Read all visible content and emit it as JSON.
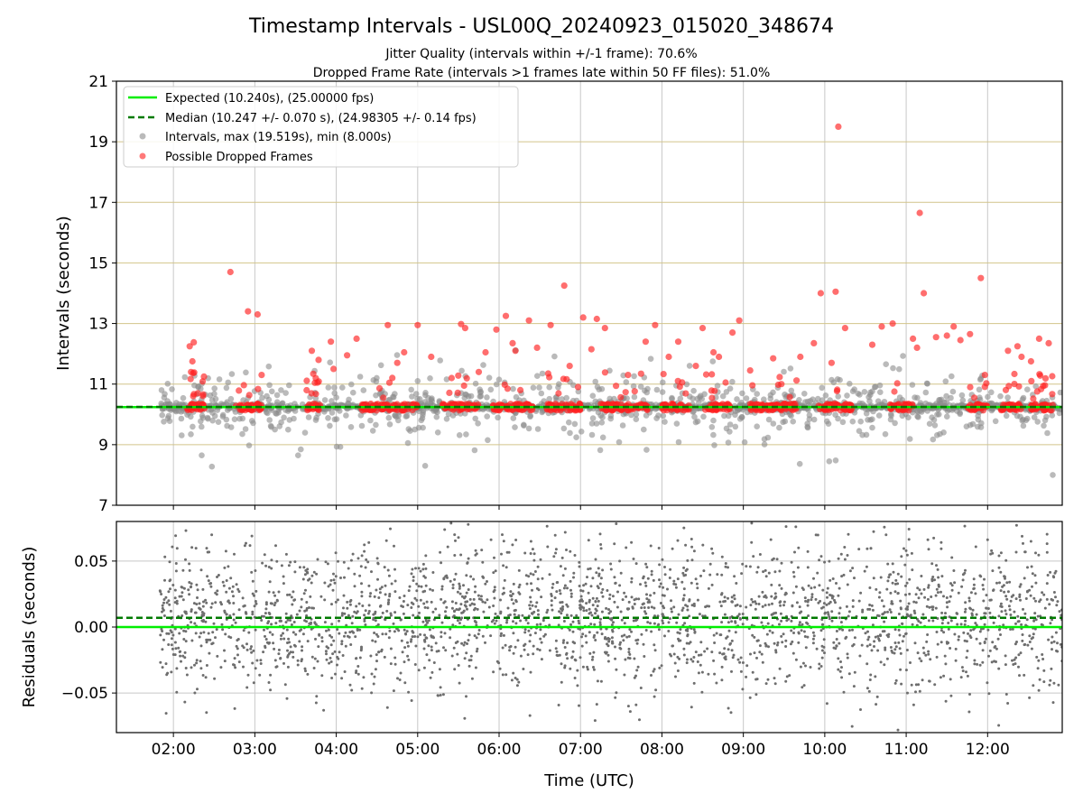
{
  "chart_data": [
    {
      "type": "scatter",
      "title": "Timestamp Intervals - USL00Q_20240923_015020_348674",
      "subtitle_lines": [
        "Jitter Quality (intervals within +/-1 frame): 70.6%",
        "Dropped Frame Rate (intervals >1 frames late within 50 FF files): 51.0%"
      ],
      "xlabel": "",
      "ylabel": "Intervals (seconds)",
      "xlim": [
        "01:18",
        "12:55"
      ],
      "ylim": [
        7,
        21
      ],
      "yticks": [
        7,
        9,
        11,
        13,
        15,
        17,
        19,
        21
      ],
      "ytick_labels": [
        "7",
        "9",
        "11",
        "13",
        "15",
        "17",
        "19",
        "21"
      ],
      "xticks": [
        "02:00",
        "03:00",
        "04:00",
        "05:00",
        "06:00",
        "07:00",
        "08:00",
        "09:00",
        "10:00",
        "11:00",
        "12:00"
      ],
      "grid": true,
      "legend_placement": "top-left",
      "legend": [
        "Expected (10.240s), (25.00000 fps)",
        "Median (10.247 +/- 0.070 s), (24.98305 +/- 0.14 fps)",
        "Intervals, max (19.519s), min (8.000s)",
        "Possible Dropped Frames"
      ],
      "expected_line": 10.24,
      "median_line": 10.247,
      "series": [
        {
          "name": "Intervals, max (19.519s), min (8.000s)",
          "color": "#8c8c8c",
          "time_range": [
            "01:50",
            "12:55"
          ],
          "baseline": 10.24,
          "max": 19.519,
          "min": 8.0
        },
        {
          "name": "Possible Dropped Frames",
          "color": "#ff2020",
          "points": [
            [
              "02:12",
              12.25
            ],
            [
              "02:15",
              12.38
            ],
            [
              "02:14",
              11.75
            ],
            [
              "02:13",
              11.4
            ],
            [
              "02:18",
              10.7
            ],
            [
              "02:42",
              14.7
            ],
            [
              "02:55",
              13.4
            ],
            [
              "03:02",
              13.3
            ],
            [
              "03:05",
              11.3
            ],
            [
              "03:42",
              12.1
            ],
            [
              "03:47",
              11.8
            ],
            [
              "03:56",
              12.4
            ],
            [
              "03:58",
              11.5
            ],
            [
              "04:08",
              11.95
            ],
            [
              "04:15",
              12.5
            ],
            [
              "04:38",
              12.95
            ],
            [
              "04:45",
              11.7
            ],
            [
              "04:50",
              12.05
            ],
            [
              "05:00",
              12.95
            ],
            [
              "05:10",
              11.9
            ],
            [
              "05:25",
              11.2
            ],
            [
              "05:32",
              12.98
            ],
            [
              "05:35",
              12.85
            ],
            [
              "05:45",
              11.4
            ],
            [
              "05:50",
              12.05
            ],
            [
              "05:58",
              12.8
            ],
            [
              "06:05",
              13.25
            ],
            [
              "06:10",
              12.35
            ],
            [
              "06:12",
              12.1
            ],
            [
              "06:22",
              13.1
            ],
            [
              "06:28",
              12.2
            ],
            [
              "06:38",
              12.95
            ],
            [
              "06:48",
              14.25
            ],
            [
              "06:52",
              11.6
            ],
            [
              "07:02",
              13.2
            ],
            [
              "07:08",
              12.15
            ],
            [
              "07:12",
              13.15
            ],
            [
              "07:18",
              12.85
            ],
            [
              "07:35",
              11.3
            ],
            [
              "07:48",
              12.4
            ],
            [
              "07:55",
              12.95
            ],
            [
              "08:05",
              11.9
            ],
            [
              "08:12",
              12.4
            ],
            [
              "08:25",
              11.6
            ],
            [
              "08:30",
              12.85
            ],
            [
              "08:38",
              12.05
            ],
            [
              "08:42",
              11.9
            ],
            [
              "08:52",
              12.7
            ],
            [
              "08:57",
              13.1
            ],
            [
              "09:05",
              11.45
            ],
            [
              "09:22",
              11.85
            ],
            [
              "09:28",
              11.0
            ],
            [
              "09:42",
              11.9
            ],
            [
              "09:52",
              12.35
            ],
            [
              "09:57",
              14.0
            ],
            [
              "10:05",
              11.7
            ],
            [
              "10:08",
              14.05
            ],
            [
              "10:10",
              19.5
            ],
            [
              "10:15",
              12.85
            ],
            [
              "10:35",
              12.3
            ],
            [
              "10:42",
              12.9
            ],
            [
              "10:50",
              13.0
            ],
            [
              "11:05",
              12.5
            ],
            [
              "11:08",
              12.2
            ],
            [
              "11:10",
              16.65
            ],
            [
              "11:13",
              14.0
            ],
            [
              "11:22",
              12.55
            ],
            [
              "11:30",
              12.6
            ],
            [
              "11:35",
              12.9
            ],
            [
              "11:40",
              12.45
            ],
            [
              "11:47",
              12.65
            ],
            [
              "11:55",
              14.5
            ],
            [
              "11:58",
              11.3
            ],
            [
              "12:15",
              12.1
            ],
            [
              "12:22",
              12.25
            ],
            [
              "12:25",
              11.9
            ],
            [
              "12:32",
              11.75
            ],
            [
              "12:38",
              12.5
            ],
            [
              "12:45",
              12.35
            ]
          ]
        }
      ]
    },
    {
      "type": "scatter",
      "title": "",
      "xlabel": "Time (UTC)",
      "ylabel": "Residuals (seconds)",
      "xlim": [
        "01:18",
        "12:55"
      ],
      "ylim": [
        -0.08,
        0.08
      ],
      "yticks": [
        -0.05,
        0.0,
        0.05
      ],
      "ytick_labels": [
        "−0.05",
        "0.00",
        "0.05"
      ],
      "xticks": [
        "02:00",
        "03:00",
        "04:00",
        "05:00",
        "06:00",
        "07:00",
        "08:00",
        "09:00",
        "10:00",
        "11:00",
        "12:00"
      ],
      "xtick_labels": [
        "02:00",
        "03:00",
        "04:00",
        "05:00",
        "06:00",
        "07:00",
        "08:00",
        "09:00",
        "10:00",
        "11:00",
        "12:00"
      ],
      "grid": true,
      "zero_line": 0.0,
      "median_line": 0.007,
      "series": [
        {
          "name": "",
          "color": "#6e6e6e",
          "time_range": [
            "01:50",
            "12:55"
          ],
          "distribution": "approximately centered at 0.007, spread about +/-0.03 s"
        }
      ]
    }
  ],
  "colors": {
    "expected": "#00ee00",
    "median": "#007a00",
    "intervals": "#8c8c8c",
    "dropped": "#ff2020",
    "residuals": "#6e6e6e",
    "grid_major": "#d2c48a",
    "grid_x": "#c8c8c8"
  }
}
